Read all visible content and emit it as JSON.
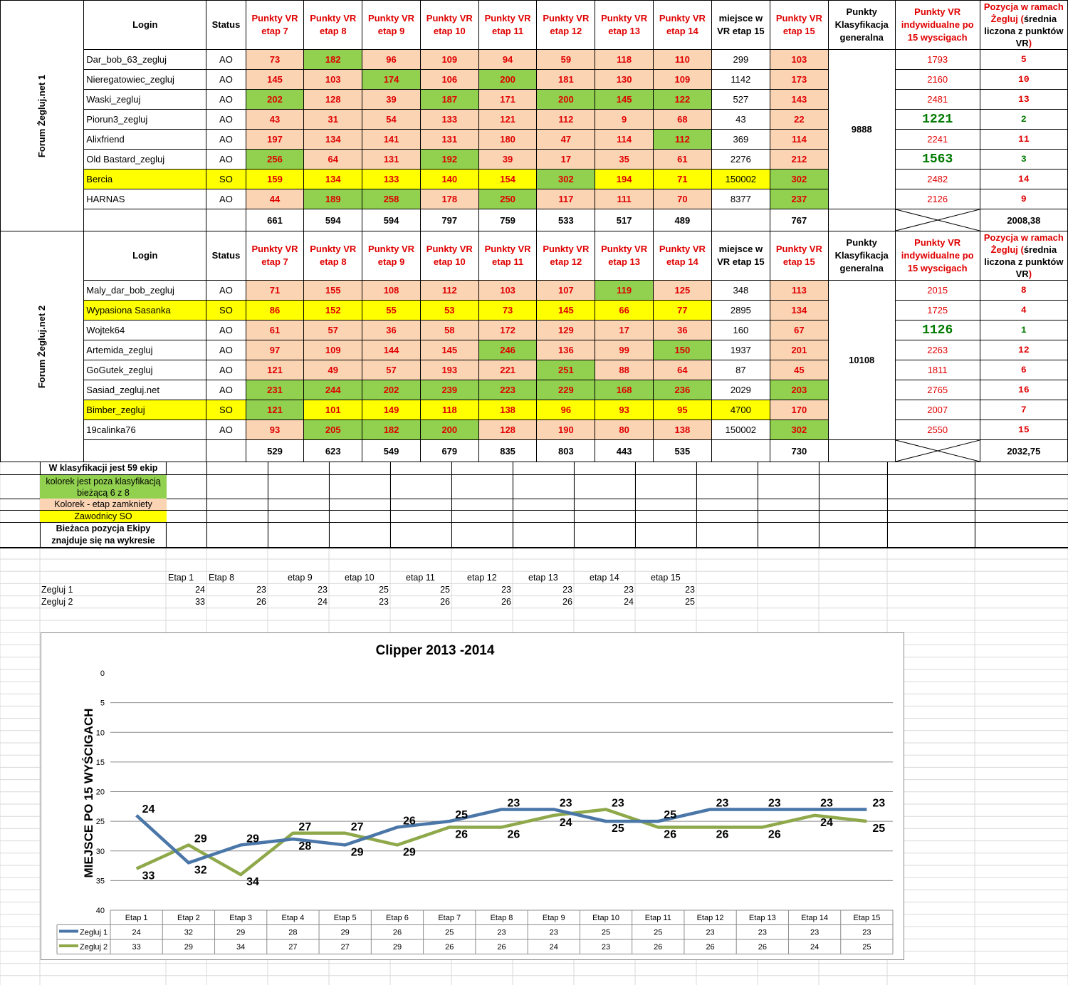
{
  "headers": {
    "login": "Login",
    "status": "Status",
    "stages": [
      "Punkty VR etap 7",
      "Punkty VR etap 8",
      "Punkty VR etap 9",
      "Punkty VR etap 10",
      "Punkty VR etap 11",
      "Punkty VR etap 12",
      "Punkty VR etap 13",
      "Punkty VR etap 14"
    ],
    "place15": "miejsce w VR etap 15",
    "pts15": "Punkty VR etap 15",
    "general": "Punkty Klasyfikacja generalna",
    "individual": "Punkty VR indywidualne po 15 wyscigach",
    "position_parts": [
      "Pozycja w ramach Żegluj (",
      "średnia liczona z punktów VR",
      ")"
    ]
  },
  "teams": [
    {
      "forum": "Forum Żegluj.net 1",
      "general_points": "9888",
      "average": "2008,38",
      "totals": [
        "661",
        "594",
        "594",
        "797",
        "759",
        "533",
        "517",
        "489",
        "",
        "767"
      ],
      "rows": [
        {
          "login": "Dar_bob_63_zegluj",
          "status": "AO",
          "pts": [
            "73",
            "182",
            "96",
            "109",
            "94",
            "59",
            "118",
            "110"
          ],
          "place15": "299",
          "pts15": "103",
          "ind": "1793",
          "pos": "5"
        },
        {
          "login": "Nieregatowiec_zegluj",
          "status": "AO",
          "pts": [
            "145",
            "103",
            "174",
            "106",
            "200",
            "181",
            "130",
            "109"
          ],
          "place15": "1142",
          "pts15": "173",
          "ind": "2160",
          "pos": "10"
        },
        {
          "login": "Waski_zegluj",
          "status": "AO",
          "pts": [
            "202",
            "128",
            "39",
            "187",
            "171",
            "200",
            "145",
            "122"
          ],
          "place15": "527",
          "pts15": "143",
          "ind": "2481",
          "pos": "13"
        },
        {
          "login": "Piorun3_zegluj",
          "status": "AO",
          "pts": [
            "43",
            "31",
            "54",
            "133",
            "121",
            "112",
            "9",
            "68"
          ],
          "place15": "43",
          "pts15": "22",
          "ind": "1221",
          "pos": "2"
        },
        {
          "login": "Alixfriend",
          "status": "AO",
          "pts": [
            "197",
            "134",
            "141",
            "131",
            "180",
            "47",
            "114",
            "112"
          ],
          "place15": "369",
          "pts15": "114",
          "ind": "2241",
          "pos": "11"
        },
        {
          "login": "Old Bastard_zegluj",
          "status": "AO",
          "pts": [
            "256",
            "64",
            "131",
            "192",
            "39",
            "17",
            "35",
            "61"
          ],
          "place15": "2276",
          "pts15": "212",
          "ind": "1563",
          "pos": "3"
        },
        {
          "login": "Bercia",
          "status": "SO",
          "pts": [
            "159",
            "134",
            "133",
            "140",
            "154",
            "302",
            "194",
            "71"
          ],
          "place15": "150002",
          "pts15": "302",
          "ind": "2482",
          "pos": "14"
        },
        {
          "login": "HARNAS",
          "status": "AO",
          "pts": [
            "44",
            "189",
            "258",
            "178",
            "250",
            "117",
            "111",
            "70"
          ],
          "place15": "8377",
          "pts15": "237",
          "ind": "2126",
          "pos": "9"
        }
      ]
    },
    {
      "forum": "Forum Żegluj.net 2",
      "general_points": "10108",
      "average": "2032,75",
      "totals": [
        "529",
        "623",
        "549",
        "679",
        "835",
        "803",
        "443",
        "535",
        "",
        "730"
      ],
      "rows": [
        {
          "login": "Maly_dar_bob_zegluj",
          "status": "AO",
          "pts": [
            "71",
            "155",
            "108",
            "112",
            "103",
            "107",
            "119",
            "125"
          ],
          "place15": "348",
          "pts15": "113",
          "ind": "2015",
          "pos": "8"
        },
        {
          "login": "Wypasiona Sasanka",
          "status": "SO",
          "pts": [
            "86",
            "152",
            "55",
            "53",
            "73",
            "145",
            "66",
            "77"
          ],
          "place15": "2895",
          "pts15": "134",
          "ind": "1725",
          "pos": "4"
        },
        {
          "login": "Wojtek64",
          "status": "AO",
          "pts": [
            "61",
            "57",
            "36",
            "58",
            "172",
            "129",
            "17",
            "36"
          ],
          "place15": "160",
          "pts15": "67",
          "ind": "1126",
          "pos": "1"
        },
        {
          "login": "Artemida_zegluj",
          "status": "AO",
          "pts": [
            "97",
            "109",
            "144",
            "145",
            "246",
            "136",
            "99",
            "150"
          ],
          "place15": "1937",
          "pts15": "201",
          "ind": "2263",
          "pos": "12"
        },
        {
          "login": "GoGutek_zegluj",
          "status": "AO",
          "pts": [
            "121",
            "49",
            "57",
            "193",
            "221",
            "251",
            "88",
            "64"
          ],
          "place15": "87",
          "pts15": "45",
          "ind": "1811",
          "pos": "6"
        },
        {
          "login": "Sasiad_zegluj.net",
          "status": "AO",
          "pts": [
            "231",
            "244",
            "202",
            "239",
            "223",
            "229",
            "168",
            "236"
          ],
          "place15": "2029",
          "pts15": "203",
          "ind": "2765",
          "pos": "16"
        },
        {
          "login": "Bimber_zegluj",
          "status": "SO",
          "pts": [
            "121",
            "101",
            "149",
            "118",
            "138",
            "96",
            "93",
            "95"
          ],
          "place15": "4700",
          "pts15": "170",
          "ind": "2007",
          "pos": "7"
        },
        {
          "login": "19calinka76",
          "status": "AO",
          "pts": [
            "93",
            "205",
            "182",
            "200",
            "128",
            "190",
            "80",
            "138"
          ],
          "place15": "150002",
          "pts15": "302",
          "ind": "2550",
          "pos": "15"
        }
      ]
    }
  ],
  "legend": {
    "count": "W klasyfikacji jest 59 ekip",
    "green": "kolorek jest  poza klasyfikacją bieżącą 6 z 8",
    "peach": "Kolorek - etap zamkniety",
    "yellow": "Zawodnicy SO",
    "note": "Bieżaca pozycja Ekipy znajduje się na wykresie"
  },
  "mini_table": {
    "headers": [
      "Etap 1",
      "Etap 8",
      "etap 9",
      "etap 10",
      "etap 11",
      "etap 12",
      "etap 13",
      "etap 14",
      "etap 15"
    ],
    "rows": [
      {
        "label": "Zegluj 1",
        "values": [
          "24",
          "23",
          "23",
          "25",
          "25",
          "23",
          "23",
          "23",
          "23"
        ]
      },
      {
        "label": "Zegluj 2",
        "values": [
          "33",
          "26",
          "24",
          "23",
          "26",
          "26",
          "26",
          "24",
          "25"
        ]
      }
    ]
  },
  "colors": {
    "peach": "#fbd4b4",
    "green": "#92d050",
    "yellow": "#ffff00",
    "red_text": "#e00000",
    "best_text": "#007a00",
    "series1": "#4a76a8",
    "series2": "#8fa84a"
  },
  "chart_data": {
    "type": "line",
    "title": "Clipper 2013 -2014",
    "ylabel": "MIEJSCE PO 15 WYŚCIGACH",
    "xlabel": "",
    "categories": [
      "Etap 1",
      "Etap 2",
      "Etap 3",
      "Etap 4",
      "Etap 5",
      "Etap 6",
      "Etap 7",
      "Etap 8",
      "Etap 9",
      "Etap 10",
      "Etap 11",
      "Etap 12",
      "Etap 13",
      "Etap 14",
      "Etap 15"
    ],
    "series": [
      {
        "name": "Zegluj 1",
        "values": [
          24,
          32,
          29,
          28,
          29,
          26,
          25,
          23,
          23,
          25,
          25,
          23,
          23,
          23,
          23
        ]
      },
      {
        "name": "Zegluj 2",
        "values": [
          33,
          29,
          34,
          27,
          27,
          29,
          26,
          26,
          24,
          23,
          26,
          26,
          26,
          24,
          25
        ]
      }
    ],
    "ylim": [
      0,
      40
    ],
    "y_reversed": true,
    "yticks": [
      0,
      5,
      10,
      15,
      20,
      25,
      30,
      35,
      40
    ],
    "grid": true,
    "legend": "data-table-below",
    "data_labels": true
  }
}
